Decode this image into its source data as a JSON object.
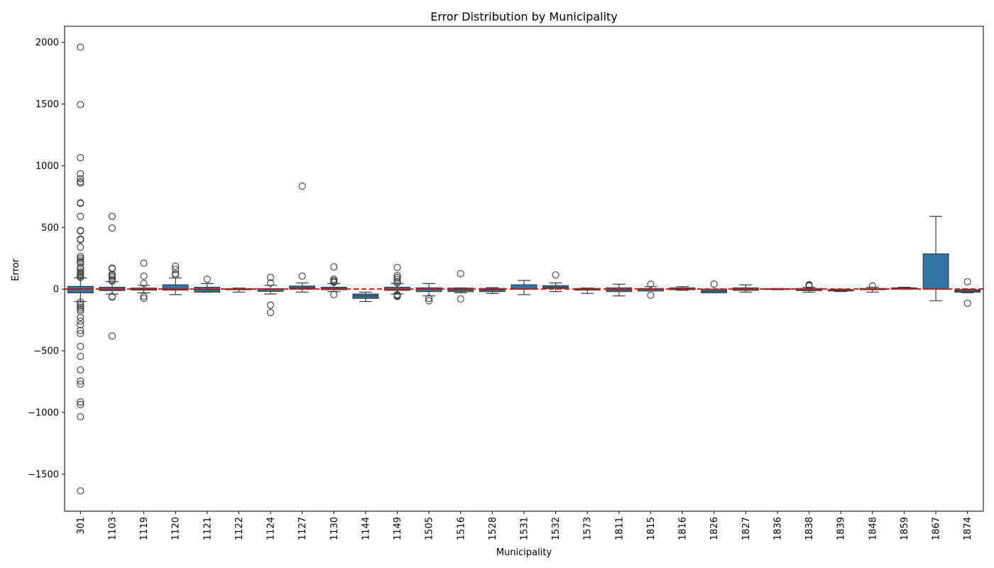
{
  "chart_data": {
    "type": "box",
    "title": "Error Distribution by Municipality",
    "xlabel": "Municipality",
    "ylabel": "Error",
    "ylim": [
      -1800,
      2130
    ],
    "yticks": [
      -1500,
      -1000,
      -500,
      0,
      500,
      1000,
      1500,
      2000
    ],
    "ytick_labels": [
      "−1500",
      "−1000",
      "−500",
      "0",
      "500",
      "1000",
      "1500",
      "2000"
    ],
    "reference_line": {
      "y": 0,
      "color": "#ff0000",
      "style": "dashed"
    },
    "box_color": "#3274a1",
    "median_color": "#d62728",
    "grid": false,
    "categories": [
      "301",
      "1103",
      "1119",
      "1120",
      "1121",
      "1122",
      "1124",
      "1127",
      "1130",
      "1144",
      "1149",
      "1505",
      "1516",
      "1528",
      "1531",
      "1532",
      "1573",
      "1811",
      "1815",
      "1816",
      "1826",
      "1827",
      "1836",
      "1838",
      "1839",
      "1848",
      "1859",
      "1867",
      "1874"
    ],
    "boxes": [
      {
        "category": "301",
        "whislo": -100,
        "q1": -30,
        "med": 0,
        "q3": 22,
        "whishi": 90,
        "fliers": [
          1960,
          1495,
          1065,
          935,
          895,
          870,
          860,
          700,
          695,
          590,
          475,
          470,
          405,
          400,
          340,
          265,
          250,
          235,
          220,
          210,
          175,
          160,
          140,
          130,
          120,
          110,
          100,
          95,
          -105,
          -120,
          -135,
          -150,
          -165,
          -180,
          -230,
          -260,
          -290,
          -335,
          -360,
          -465,
          -545,
          -655,
          -745,
          -770,
          -915,
          -935,
          -1035,
          -1635
        ]
      },
      {
        "category": "1103",
        "whislo": -40,
        "q1": -12,
        "med": 0,
        "q3": 15,
        "whishi": 60,
        "fliers": [
          590,
          495,
          170,
          165,
          120,
          110,
          100,
          85,
          70,
          65,
          -60,
          -65,
          -380
        ]
      },
      {
        "category": "1119",
        "whislo": -30,
        "q1": -8,
        "med": 0,
        "q3": 8,
        "whishi": 30,
        "fliers": [
          210,
          105,
          45,
          -60,
          -75
        ]
      },
      {
        "category": "1120",
        "whislo": -45,
        "q1": -8,
        "med": 0,
        "q3": 35,
        "whishi": 90,
        "fliers": [
          185,
          160,
          125,
          115
        ]
      },
      {
        "category": "1121",
        "whislo": -25,
        "q1": -25,
        "med": -5,
        "q3": 15,
        "whishi": 45,
        "fliers": [
          80
        ]
      },
      {
        "category": "1122",
        "whislo": -25,
        "q1": -5,
        "med": 0,
        "q3": 3,
        "whishi": 8,
        "fliers": []
      },
      {
        "category": "1124",
        "whislo": -40,
        "q1": -18,
        "med": 0,
        "q3": 3,
        "whishi": 30,
        "fliers": [
          95,
          50,
          -130,
          -190
        ]
      },
      {
        "category": "1127",
        "whislo": -25,
        "q1": 0,
        "med": 10,
        "q3": 25,
        "whishi": 50,
        "fliers": [
          835,
          105
        ]
      },
      {
        "category": "1130",
        "whislo": -20,
        "q1": -5,
        "med": 5,
        "q3": 15,
        "whishi": 45,
        "fliers": [
          180,
          80,
          70,
          60,
          55,
          -45
        ]
      },
      {
        "category": "1144",
        "whislo": -100,
        "q1": -75,
        "med": -55,
        "q3": -40,
        "whishi": -25,
        "fliers": []
      },
      {
        "category": "1149",
        "whislo": -40,
        "q1": -10,
        "med": 0,
        "q3": 15,
        "whishi": 45,
        "fliers": [
          175,
          110,
          95,
          80,
          60,
          50,
          -45,
          -50,
          -55,
          -60
        ]
      },
      {
        "category": "1505",
        "whislo": -55,
        "q1": -20,
        "med": 0,
        "q3": 10,
        "whishi": 45,
        "fliers": [
          -75,
          -95
        ]
      },
      {
        "category": "1516",
        "whislo": -30,
        "q1": -20,
        "med": -5,
        "q3": 8,
        "whishi": 10,
        "fliers": [
          125,
          -80
        ]
      },
      {
        "category": "1528",
        "whislo": -35,
        "q1": -20,
        "med": -5,
        "q3": 5,
        "whishi": 12,
        "fliers": []
      },
      {
        "category": "1531",
        "whislo": -45,
        "q1": 0,
        "med": 0,
        "q3": 35,
        "whishi": 70,
        "fliers": []
      },
      {
        "category": "1532",
        "whislo": -20,
        "q1": 5,
        "med": 15,
        "q3": 28,
        "whishi": 50,
        "fliers": [
          115
        ]
      },
      {
        "category": "1573",
        "whislo": -35,
        "q1": -8,
        "med": 0,
        "q3": 5,
        "whishi": 8,
        "fliers": []
      },
      {
        "category": "1811",
        "whislo": -55,
        "q1": -20,
        "med": -5,
        "q3": 10,
        "whishi": 40,
        "fliers": []
      },
      {
        "category": "1815",
        "whislo": -15,
        "q1": -15,
        "med": 0,
        "q3": 5,
        "whishi": 20,
        "fliers": [
          40,
          -50
        ]
      },
      {
        "category": "1816",
        "whislo": -10,
        "q1": -5,
        "med": 0,
        "q3": 10,
        "whishi": 20,
        "fliers": []
      },
      {
        "category": "1826",
        "whislo": -30,
        "q1": -30,
        "med": -15,
        "q3": 0,
        "whishi": 0,
        "fliers": [
          40
        ]
      },
      {
        "category": "1827",
        "whislo": -25,
        "q1": -10,
        "med": 0,
        "q3": 10,
        "whishi": 35,
        "fliers": []
      },
      {
        "category": "1836",
        "whislo": -5,
        "q1": -3,
        "med": 0,
        "q3": 3,
        "whishi": 5,
        "fliers": []
      },
      {
        "category": "1838",
        "whislo": -25,
        "q1": -12,
        "med": -5,
        "q3": 5,
        "whishi": 15,
        "fliers": [
          35,
          30,
          25
        ]
      },
      {
        "category": "1839",
        "whislo": -20,
        "q1": -15,
        "med": -10,
        "q3": -5,
        "whishi": 0,
        "fliers": []
      },
      {
        "category": "1848",
        "whislo": -25,
        "q1": -5,
        "med": 0,
        "q3": 5,
        "whishi": 15,
        "fliers": [
          25
        ]
      },
      {
        "category": "1859",
        "whislo": 0,
        "q1": 0,
        "med": 5,
        "q3": 10,
        "whishi": 15,
        "fliers": []
      },
      {
        "category": "1867",
        "whislo": -95,
        "q1": 0,
        "med": 0,
        "q3": 285,
        "whishi": 590,
        "fliers": []
      },
      {
        "category": "1874",
        "whislo": -30,
        "q1": -25,
        "med": -15,
        "q3": -5,
        "whishi": 0,
        "fliers": [
          60,
          -115
        ]
      }
    ]
  }
}
